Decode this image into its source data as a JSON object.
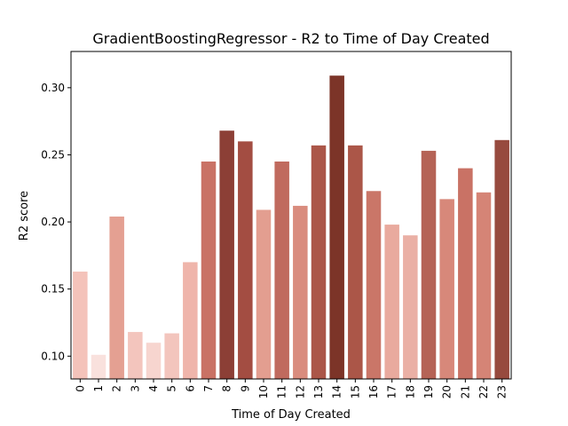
{
  "chart_data": {
    "type": "bar",
    "title": "GradientBoostingRegressor - R2 to Time of Day Created",
    "xlabel": "Time of Day Created",
    "ylabel": "R2 score",
    "categories": [
      "0",
      "1",
      "2",
      "3",
      "4",
      "5",
      "6",
      "7",
      "8",
      "9",
      "10",
      "11",
      "12",
      "13",
      "14",
      "15",
      "16",
      "17",
      "18",
      "19",
      "20",
      "21",
      "22",
      "23"
    ],
    "values": [
      0.163,
      0.101,
      0.204,
      0.118,
      0.11,
      0.117,
      0.17,
      0.245,
      0.268,
      0.26,
      0.209,
      0.245,
      0.212,
      0.257,
      0.309,
      0.257,
      0.223,
      0.198,
      0.19,
      0.253,
      0.217,
      0.24,
      0.222,
      0.261
    ],
    "colors": [
      "#f4c3ba",
      "#f9e1dd",
      "#e4a092",
      "#f3c5bd",
      "#f7d5cf",
      "#f3c5bd",
      "#efb5ab",
      "#c97265",
      "#8c3f36",
      "#a34d42",
      "#e39e90",
      "#c06a5e",
      "#d98c7e",
      "#ab5648",
      "#7c3428",
      "#ab5648",
      "#ca7668",
      "#e9aa9e",
      "#eab0a5",
      "#b56356",
      "#d7887a",
      "#c97265",
      "#d58476",
      "#974a3e"
    ],
    "ylim": [
      0.083,
      0.327
    ],
    "yticks": [
      0.1,
      0.15,
      0.2,
      0.25,
      0.3
    ],
    "ytick_labels": [
      "0.10",
      "0.15",
      "0.20",
      "0.25",
      "0.30"
    ],
    "grid": false
  }
}
